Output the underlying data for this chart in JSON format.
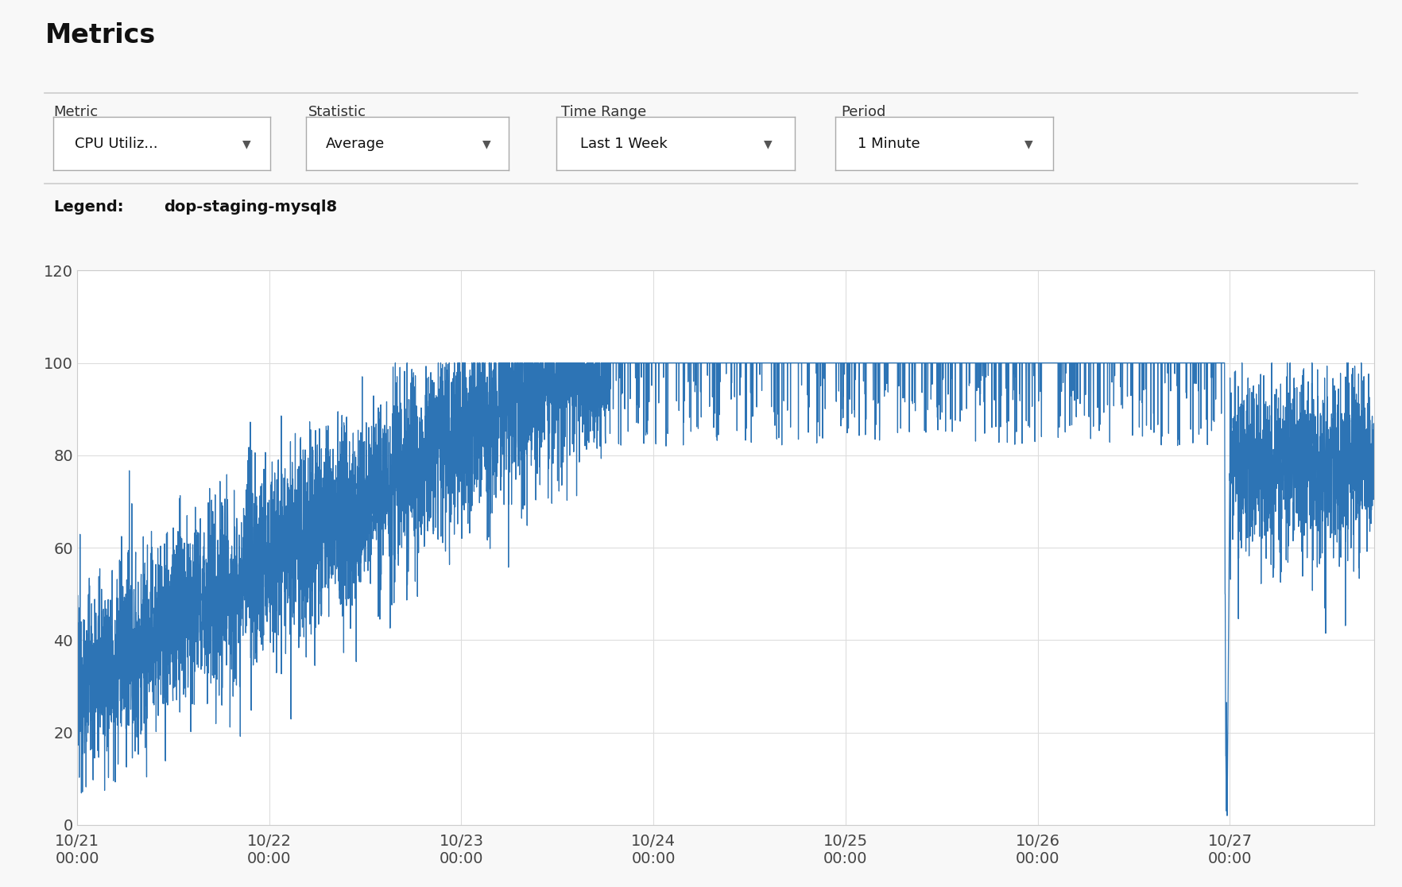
{
  "title": "Metrics",
  "legend_label": "dop-staging-mysql8",
  "legend_color": "#2d74b5",
  "metric_label": "Metric",
  "metric_value": "CPU Utiliz...",
  "statistic_label": "Statistic",
  "statistic_value": "Average",
  "time_range_label": "Time Range",
  "time_range_value": "Last 1 Week",
  "period_label": "Period",
  "period_value": "1 Minute",
  "x_tick_labels": [
    "10/21\n00:00",
    "10/22\n00:00",
    "10/23\n00:00",
    "10/24\n00:00",
    "10/25\n00:00",
    "10/26\n00:00",
    "10/27\n00:00",
    ""
  ],
  "x_tick_positions": [
    0,
    1440,
    2880,
    4320,
    5760,
    7200,
    8640,
    9720
  ],
  "ylim": [
    0,
    120
  ],
  "yticks": [
    0,
    20,
    40,
    60,
    80,
    100,
    120
  ],
  "line_color": "#2d74b5",
  "background_color": "#f8f8f8",
  "plot_bg_color": "#ffffff",
  "grid_color": "#dddddd",
  "total_minutes": 9720,
  "drop_point": 8600,
  "drop_min_point": 8620,
  "recovery_start": 8640
}
